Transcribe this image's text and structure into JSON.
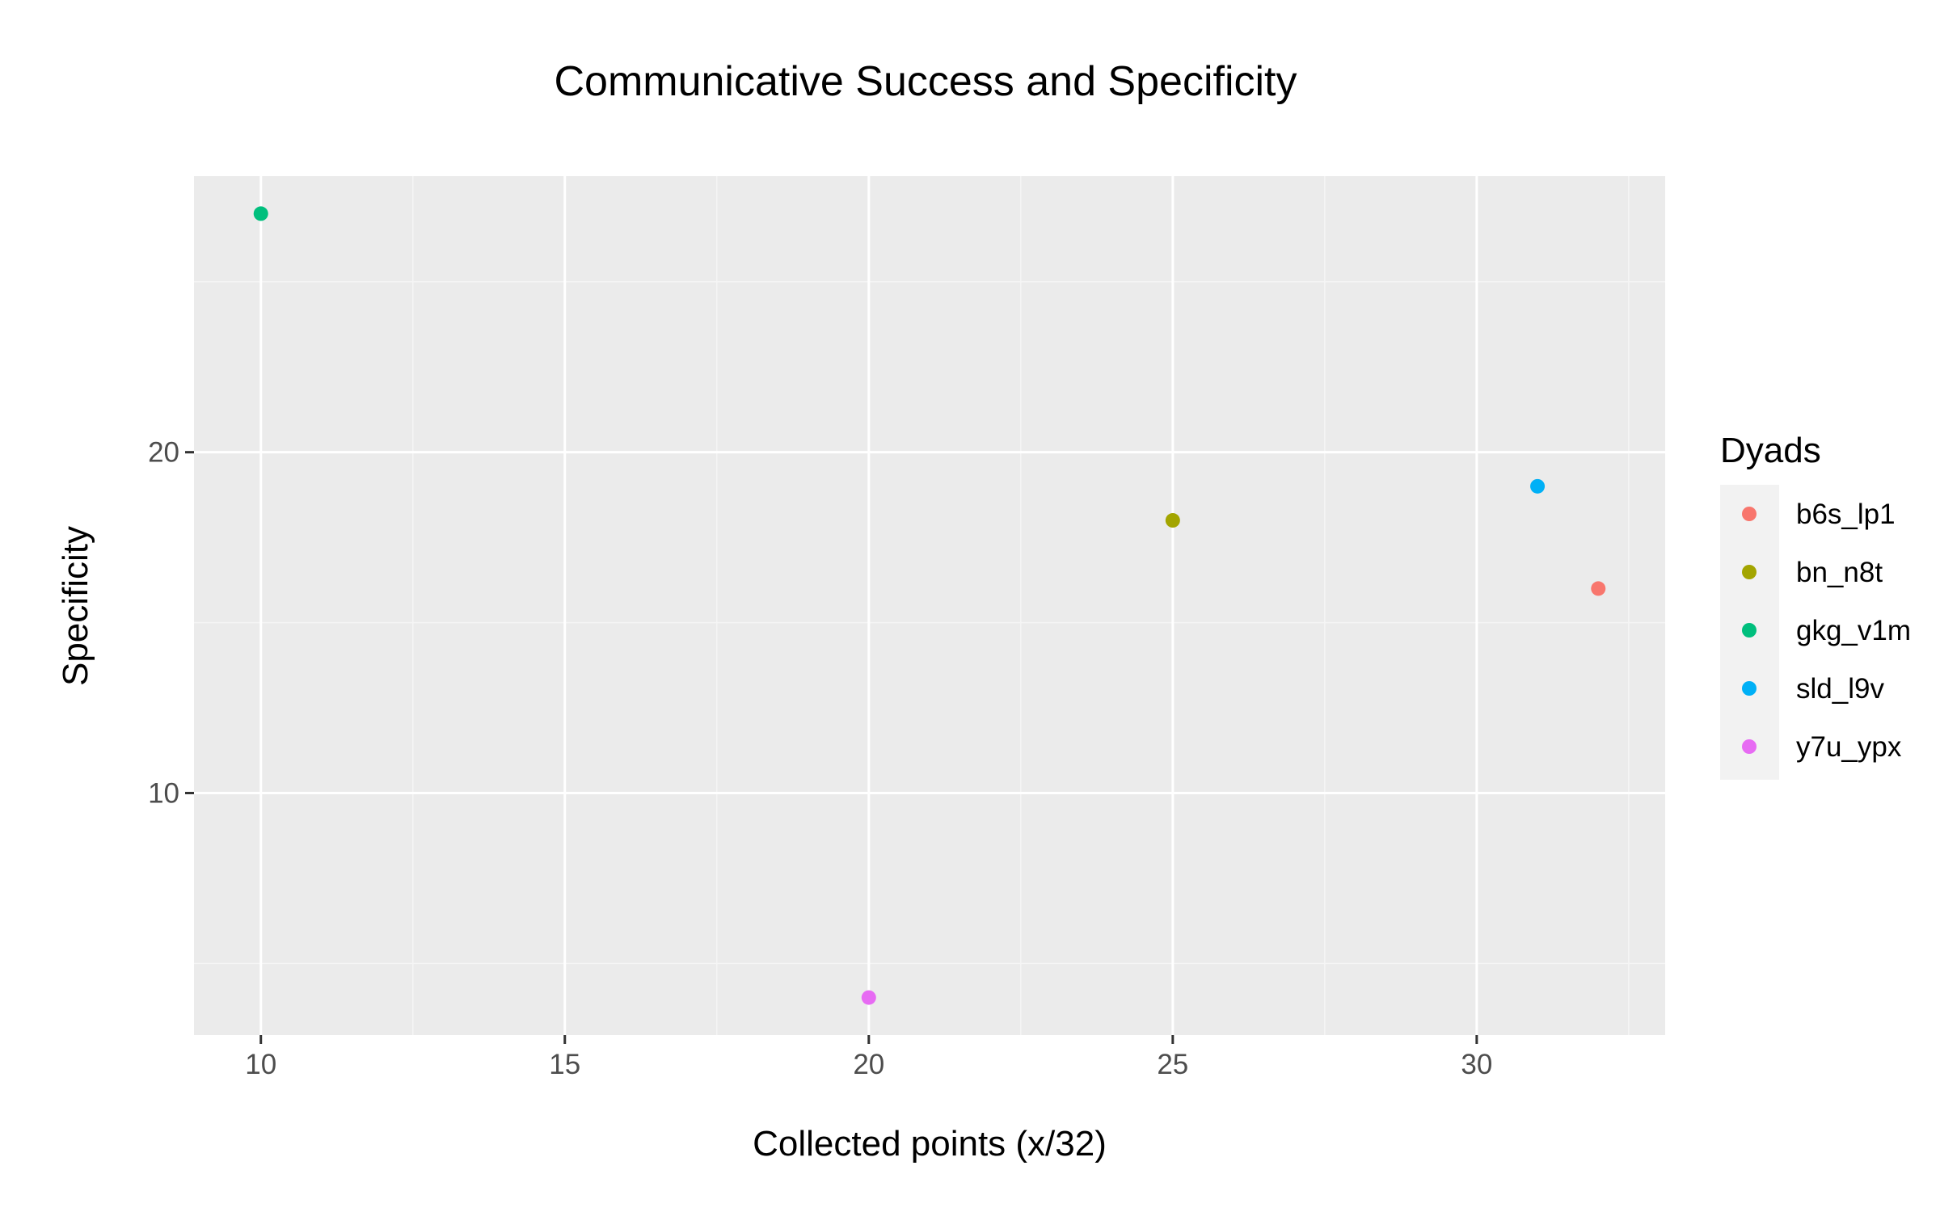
{
  "chart_data": {
    "type": "scatter",
    "title": "Communicative Success and Specificity",
    "xlabel": "Collected points (x/32)",
    "ylabel": "Specificity",
    "xlim": [
      8.9,
      33.1
    ],
    "ylim": [
      2.9,
      28.1
    ],
    "x_major_ticks": [
      10,
      15,
      20,
      25,
      30
    ],
    "x_minor_ticks": [
      12.5,
      17.5,
      22.5,
      27.5,
      32.5
    ],
    "y_major_ticks": [
      10,
      20
    ],
    "y_minor_ticks": [
      5,
      15,
      25
    ],
    "grid": true,
    "legend_title": "Dyads",
    "legend_position": "right",
    "series": [
      {
        "name": "b6s_lp1",
        "color": "#F8766D",
        "points": [
          {
            "x": 32,
            "y": 16
          }
        ]
      },
      {
        "name": "bn_n8t",
        "color": "#A3A500",
        "points": [
          {
            "x": 25,
            "y": 18
          }
        ]
      },
      {
        "name": "gkg_v1m",
        "color": "#00BF7D",
        "points": [
          {
            "x": 10,
            "y": 27
          }
        ]
      },
      {
        "name": "sld_l9v",
        "color": "#00B0F6",
        "points": [
          {
            "x": 31,
            "y": 19
          }
        ]
      },
      {
        "name": "y7u_ypx",
        "color": "#E76BF3",
        "points": [
          {
            "x": 20,
            "y": 4
          }
        ]
      }
    ],
    "colors": {
      "panel_background": "#EBEBEB",
      "grid_major": "#FFFFFF",
      "grid_minor": "#F5F5F5",
      "legend_key_background": "#F2F2F2"
    }
  }
}
